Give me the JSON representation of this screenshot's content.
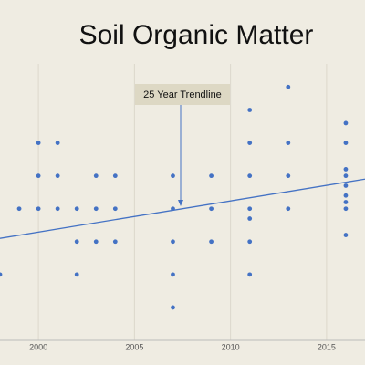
{
  "chart_data": {
    "type": "scatter",
    "title": "Soil Organic Matter",
    "annotation": "25 Year Trendline",
    "xlim": [
      1998,
      2017
    ],
    "xticks": [
      2000,
      2005,
      2010,
      2015
    ],
    "ylim": [
      0,
      8.4
    ],
    "grid": true,
    "color": "#4472c4",
    "series": [
      {
        "name": "Soil Organic Matter",
        "color": "#4472c4",
        "x": [
          1998,
          1999,
          2000,
          2000,
          2000,
          2001,
          2001,
          2001,
          2002,
          2002,
          2002,
          2003,
          2003,
          2003,
          2004,
          2004,
          2004,
          2007,
          2007,
          2007,
          2007,
          2007,
          2009,
          2009,
          2009,
          2011,
          2011,
          2011,
          2011,
          2011,
          2011,
          2011,
          2013,
          2013,
          2013,
          2013,
          2016,
          2016,
          2016,
          2016,
          2016,
          2016,
          2016,
          2016,
          2016
        ],
        "values": [
          2,
          4,
          6,
          5,
          4,
          6,
          5,
          4,
          4,
          3,
          2,
          5,
          4,
          3,
          5,
          4,
          3,
          5,
          4,
          3,
          2,
          1,
          5,
          4,
          3,
          7,
          6,
          5,
          4,
          3.7,
          3,
          2,
          7.7,
          6,
          5,
          4,
          6.6,
          6,
          5.2,
          5,
          4.7,
          4.4,
          4.2,
          4,
          3.2
        ]
      }
    ],
    "trendline": {
      "color": "#4472c4",
      "x": [
        1998,
        2017
      ],
      "values": [
        3.1,
        4.9
      ]
    }
  }
}
